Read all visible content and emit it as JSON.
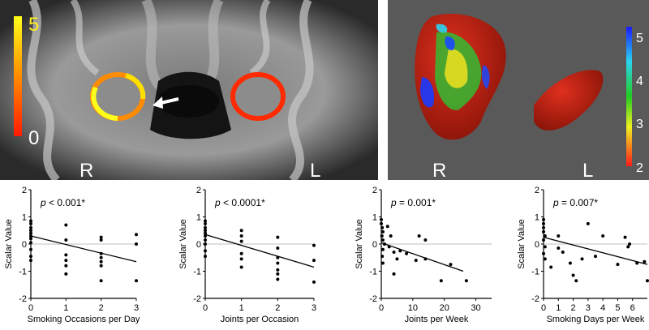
{
  "mri_panel": {
    "scale_max": "5",
    "scale_min": "0",
    "label_right": "R",
    "label_left": "L"
  },
  "render_panel": {
    "scale_ticks": [
      "5",
      "4",
      "3",
      "2"
    ],
    "label_right": "R",
    "label_left": "L"
  },
  "chart_data": [
    {
      "type": "scatter",
      "annotation": "p < 0.001*",
      "xlabel": "Smoking Occasions per Day",
      "ylabel": "Scalar Value",
      "xlim": [
        0,
        3
      ],
      "ylim": [
        -2,
        2
      ],
      "xticks": [
        0,
        1,
        2,
        3
      ],
      "yticks": [
        -2,
        -1,
        0,
        1,
        2
      ],
      "points": [
        [
          0,
          0.85
        ],
        [
          0,
          0.75
        ],
        [
          0,
          0.6
        ],
        [
          0,
          0.5
        ],
        [
          0,
          0.4
        ],
        [
          0,
          0.3
        ],
        [
          0,
          0.2
        ],
        [
          0,
          0.05
        ],
        [
          0,
          -0.2
        ],
        [
          0,
          -0.45
        ],
        [
          0,
          -0.6
        ],
        [
          1,
          0.7
        ],
        [
          1,
          0.15
        ],
        [
          1,
          -0.4
        ],
        [
          1,
          -0.6
        ],
        [
          1,
          -0.8
        ],
        [
          1,
          -1.1
        ],
        [
          2,
          0.25
        ],
        [
          2,
          0.15
        ],
        [
          2,
          -0.35
        ],
        [
          2,
          -0.5
        ],
        [
          2,
          -0.65
        ],
        [
          2,
          -0.8
        ],
        [
          2,
          -1.35
        ],
        [
          3,
          0.35
        ],
        [
          3,
          0
        ],
        [
          3,
          -1.35
        ]
      ],
      "fit": [
        [
          0,
          0.3
        ],
        [
          3,
          -0.65
        ]
      ]
    },
    {
      "type": "scatter",
      "annotation": "p < 0.0001*",
      "xlabel": "Joints per Occasion",
      "ylabel": "Scalar Value",
      "xlim": [
        0,
        3
      ],
      "ylim": [
        -2,
        2
      ],
      "xticks": [
        0,
        1,
        2,
        3
      ],
      "yticks": [
        -2,
        -1,
        0,
        1,
        2
      ],
      "points": [
        [
          0,
          0.85
        ],
        [
          0,
          0.75
        ],
        [
          0,
          0.6
        ],
        [
          0,
          0.5
        ],
        [
          0,
          0.4
        ],
        [
          0,
          0.3
        ],
        [
          0,
          0.15
        ],
        [
          0,
          0
        ],
        [
          0,
          -0.25
        ],
        [
          0,
          -0.45
        ],
        [
          1,
          0.5
        ],
        [
          1,
          0.3
        ],
        [
          1,
          0.1
        ],
        [
          1,
          -0.35
        ],
        [
          1,
          -0.55
        ],
        [
          1,
          -0.85
        ],
        [
          2,
          0.25
        ],
        [
          2,
          -0.15
        ],
        [
          2,
          -0.5
        ],
        [
          2,
          -0.7
        ],
        [
          2,
          -0.95
        ],
        [
          2,
          -1.1
        ],
        [
          2,
          -1.3
        ],
        [
          3,
          -0.05
        ],
        [
          3,
          -0.6
        ],
        [
          3,
          -1.4
        ]
      ],
      "fit": [
        [
          0,
          0.35
        ],
        [
          3,
          -0.85
        ]
      ]
    },
    {
      "type": "scatter",
      "annotation": "p = 0.001*",
      "xlabel": "Joints per Week",
      "ylabel": "Scalar Value",
      "xlim": [
        0,
        35
      ],
      "ylim": [
        -2,
        2
      ],
      "xticks": [
        0,
        10,
        20,
        30
      ],
      "yticks": [
        -2,
        -1,
        0,
        1,
        2
      ],
      "points": [
        [
          0,
          0.9
        ],
        [
          0,
          0.75
        ],
        [
          0.3,
          0.6
        ],
        [
          0.5,
          0.45
        ],
        [
          0.2,
          0.3
        ],
        [
          0.5,
          0.15
        ],
        [
          1,
          0
        ],
        [
          0.5,
          -0.2
        ],
        [
          0.3,
          -0.45
        ],
        [
          0.5,
          -0.7
        ],
        [
          2,
          0.65
        ],
        [
          3,
          0.3
        ],
        [
          2.5,
          -0.1
        ],
        [
          4,
          -0.3
        ],
        [
          4,
          -1.1
        ],
        [
          5,
          -0.55
        ],
        [
          6,
          -0.25
        ],
        [
          8,
          -0.35
        ],
        [
          11,
          -0.6
        ],
        [
          12,
          0.3
        ],
        [
          14,
          0.15
        ],
        [
          14,
          -0.55
        ],
        [
          19,
          -1.35
        ],
        [
          22,
          -0.75
        ],
        [
          27,
          -1.35
        ]
      ],
      "fit": [
        [
          0,
          0.05
        ],
        [
          26,
          -1
        ]
      ]
    },
    {
      "type": "scatter",
      "annotation": "p = 0.007*",
      "xlabel": "Smoking Days per Week",
      "ylabel": "Scalar Value",
      "xlim": [
        0,
        7
      ],
      "ylim": [
        -2,
        2
      ],
      "xticks": [
        0,
        1,
        2,
        3,
        4,
        5,
        6
      ],
      "yticks": [
        -2,
        -1,
        0,
        1,
        2
      ],
      "points": [
        [
          0,
          0.9
        ],
        [
          0,
          0.75
        ],
        [
          0,
          0.6
        ],
        [
          0,
          0.45
        ],
        [
          0.1,
          0.3
        ],
        [
          0,
          0.15
        ],
        [
          0.1,
          -0.1
        ],
        [
          0,
          -0.35
        ],
        [
          0.1,
          -0.55
        ],
        [
          0.5,
          -0.85
        ],
        [
          1,
          0.3
        ],
        [
          1,
          -0.15
        ],
        [
          1.3,
          -0.3
        ],
        [
          1.8,
          -0.7
        ],
        [
          2,
          -1.15
        ],
        [
          2.2,
          -1.35
        ],
        [
          2.6,
          -0.55
        ],
        [
          3,
          0.75
        ],
        [
          3.5,
          -0.45
        ],
        [
          4,
          0.3
        ],
        [
          5,
          -0.75
        ],
        [
          5.5,
          0.25
        ],
        [
          5.7,
          -0.1
        ],
        [
          5.8,
          0
        ],
        [
          6.3,
          -0.7
        ],
        [
          6.8,
          -0.65
        ],
        [
          7,
          -1.35
        ]
      ],
      "fit": [
        [
          0,
          0.25
        ],
        [
          7,
          -0.75
        ]
      ]
    }
  ]
}
